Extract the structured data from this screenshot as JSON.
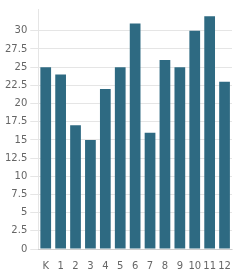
{
  "chart_data": {
    "type": "bar",
    "categories": [
      "K",
      "1",
      "2",
      "3",
      "4",
      "5",
      "6",
      "7",
      "8",
      "9",
      "10",
      "11",
      "12"
    ],
    "values": [
      25,
      24,
      17,
      15,
      22,
      25,
      31,
      16,
      26,
      25,
      30,
      32,
      23
    ],
    "color": "#2e6a82",
    "ylim": [
      0,
      33
    ],
    "yticks": [
      0,
      2.5,
      5,
      7.5,
      10,
      12.5,
      15,
      17.5,
      20,
      22.5,
      25,
      27.5,
      30
    ],
    "grid": true
  }
}
